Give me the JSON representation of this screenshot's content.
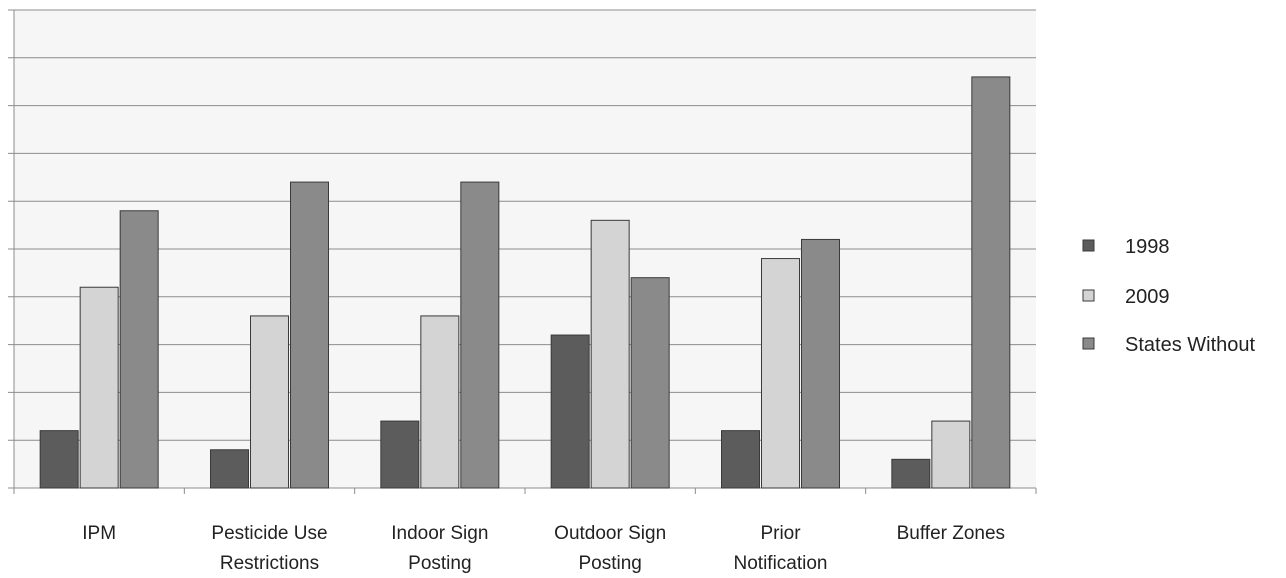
{
  "chart_data": {
    "type": "bar",
    "title": "",
    "xlabel": "",
    "ylabel": "",
    "categories": [
      [
        "IPM"
      ],
      [
        "Pesticide Use",
        "Restrictions"
      ],
      [
        "Indoor Sign",
        "Posting"
      ],
      [
        "Outdoor Sign",
        "Posting"
      ],
      [
        "Prior",
        "Notification"
      ],
      [
        "Buffer Zones"
      ]
    ],
    "series": [
      {
        "name": "1998",
        "values": [
          6,
          4,
          7,
          16,
          6,
          3
        ],
        "color": "#5c5c5c"
      },
      {
        "name": "2009",
        "values": [
          21,
          18,
          18,
          28,
          24,
          7
        ],
        "color": "#d4d4d4"
      },
      {
        "name": "States Without",
        "values": [
          29,
          32,
          32,
          22,
          26,
          43
        ],
        "color": "#8a8a8a"
      }
    ],
    "ylim": [
      0,
      50
    ],
    "grid": true,
    "legend_position": "right"
  }
}
